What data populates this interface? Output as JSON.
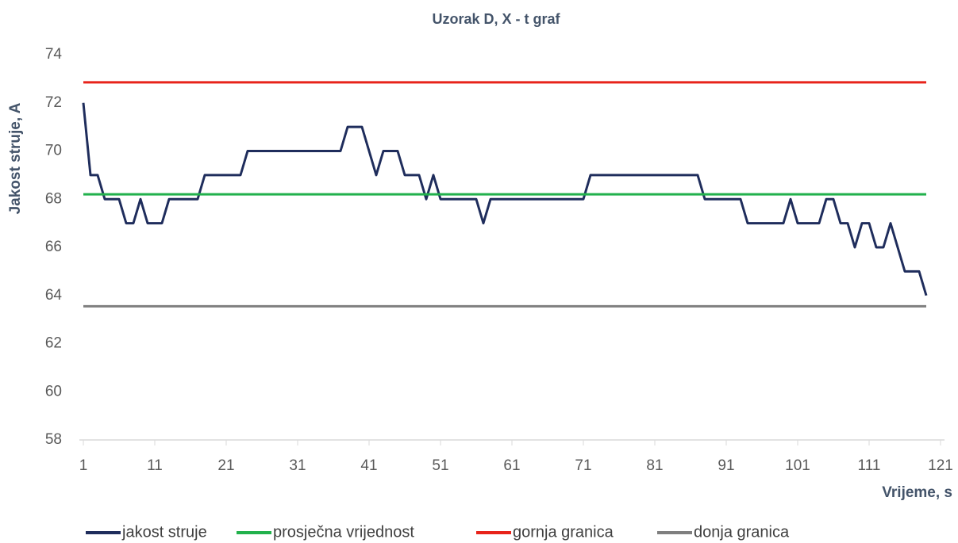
{
  "chart_data": {
    "type": "line",
    "title": "Uzorak D, X - t graf",
    "x_label": "Vrijeme, s",
    "y_label": "Jakost struje, A",
    "x": [
      1,
      2,
      3,
      4,
      5,
      6,
      7,
      8,
      9,
      10,
      11,
      12,
      13,
      14,
      15,
      16,
      17,
      18,
      19,
      20,
      21,
      22,
      23,
      24,
      25,
      26,
      27,
      28,
      29,
      30,
      31,
      32,
      33,
      34,
      35,
      36,
      37,
      38,
      39,
      40,
      41,
      42,
      43,
      44,
      45,
      46,
      47,
      48,
      49,
      50,
      51,
      52,
      53,
      54,
      55,
      56,
      57,
      58,
      59,
      60,
      61,
      62,
      63,
      64,
      65,
      66,
      67,
      68,
      69,
      70,
      71,
      72,
      73,
      74,
      75,
      76,
      77,
      78,
      79,
      80,
      81,
      82,
      83,
      84,
      85,
      86,
      87,
      88,
      89,
      90,
      91,
      92,
      93,
      94,
      95,
      96,
      97,
      98,
      99,
      100,
      101,
      102,
      103,
      104,
      105,
      106,
      107,
      108,
      109,
      110,
      111,
      112,
      113,
      114,
      115,
      116,
      117,
      118,
      119
    ],
    "series": [
      {
        "name": "jakost struje",
        "color": "#1f2d5c",
        "values": [
          72,
          69,
          69,
          68,
          68,
          68,
          67,
          67,
          68,
          67,
          67,
          67,
          68,
          68,
          68,
          68,
          68,
          69,
          69,
          69,
          69,
          69,
          69,
          70,
          70,
          70,
          70,
          70,
          70,
          70,
          70,
          70,
          70,
          70,
          70,
          70,
          70,
          71,
          71,
          71,
          70,
          69,
          70,
          70,
          70,
          69,
          69,
          69,
          68,
          69,
          68,
          68,
          68,
          68,
          68,
          68,
          67,
          68,
          68,
          68,
          68,
          68,
          68,
          68,
          68,
          68,
          68,
          68,
          68,
          68,
          68,
          69,
          69,
          69,
          69,
          69,
          69,
          69,
          69,
          69,
          69,
          69,
          69,
          69,
          69,
          69,
          69,
          68,
          68,
          68,
          68,
          68,
          68,
          67,
          67,
          67,
          67,
          67,
          67,
          68,
          67,
          67,
          67,
          67,
          68,
          68,
          67,
          67,
          66,
          67,
          67,
          66,
          66,
          67,
          66,
          65,
          65,
          65,
          64
        ]
      },
      {
        "name": "prosječna vrijednost",
        "color": "#22b14c",
        "x": [
          1,
          119
        ],
        "values": [
          68.2,
          68.2
        ]
      },
      {
        "name": "gornja granica",
        "color": "#e8231a",
        "x": [
          1,
          119
        ],
        "values": [
          72.85,
          72.85
        ]
      },
      {
        "name": "donja granica",
        "color": "#7f7f7f",
        "x": [
          1,
          119
        ],
        "values": [
          63.55,
          63.55
        ]
      }
    ],
    "xlim": [
      1,
      121
    ],
    "xticks": [
      1,
      11,
      21,
      31,
      41,
      51,
      61,
      71,
      81,
      91,
      101,
      111,
      121
    ],
    "ylim": [
      58,
      74
    ],
    "yticks": [
      58,
      60,
      62,
      64,
      66,
      68,
      70,
      72,
      74
    ],
    "grid": false,
    "legend": "bottom"
  }
}
